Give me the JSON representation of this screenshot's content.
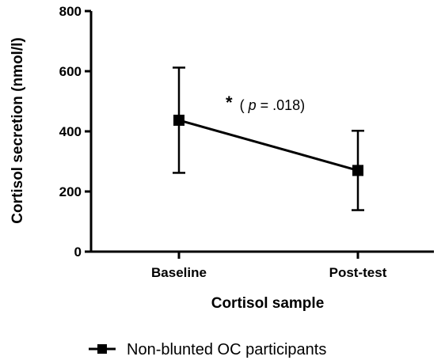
{
  "chart_data": {
    "type": "line",
    "categories": [
      "Baseline",
      "Post-test"
    ],
    "series": [
      {
        "name": "Non-blunted OC participants",
        "values": [
          437,
          270
        ],
        "error_upper": [
          612,
          402
        ],
        "error_lower": [
          262,
          138
        ],
        "marker": "square",
        "color": "#000000"
      }
    ],
    "xlabel": "Cortisol sample",
    "ylabel": "Cortisol secretion (nmol/l)",
    "ylim": [
      0,
      800
    ],
    "yticks": [
      "0",
      "200",
      "400",
      "600",
      "800"
    ],
    "annotation": {
      "star": "*",
      "open": "(",
      "p": "p",
      "rest": " = .018)"
    },
    "grid": false,
    "legend_position": "bottom-center"
  }
}
